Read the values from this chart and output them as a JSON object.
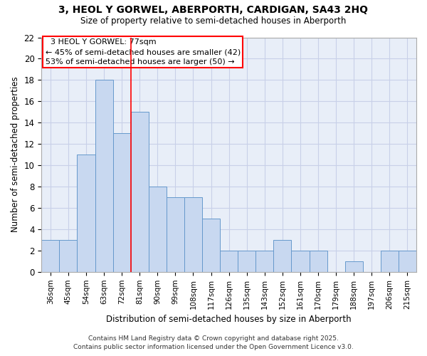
{
  "title": "3, HEOL Y GORWEL, ABERPORTH, CARDIGAN, SA43 2HQ",
  "subtitle": "Size of property relative to semi-detached houses in Aberporth",
  "xlabel": "Distribution of semi-detached houses by size in Aberporth",
  "ylabel": "Number of semi-detached properties",
  "categories": [
    "36sqm",
    "45sqm",
    "54sqm",
    "63sqm",
    "72sqm",
    "81sqm",
    "90sqm",
    "99sqm",
    "108sqm",
    "117sqm",
    "126sqm",
    "135sqm",
    "143sqm",
    "152sqm",
    "161sqm",
    "170sqm",
    "179sqm",
    "188sqm",
    "197sqm",
    "206sqm",
    "215sqm"
  ],
  "values": [
    3,
    3,
    11,
    18,
    13,
    15,
    8,
    7,
    7,
    5,
    2,
    2,
    2,
    3,
    2,
    2,
    0,
    1,
    0,
    2,
    2
  ],
  "bar_color": "#c8d8f0",
  "bar_edgecolor": "#6699cc",
  "redline_index": 5,
  "annotation_title": "3 HEOL Y GORWEL: 77sqm",
  "annotation_line1": "← 45% of semi-detached houses are smaller (42)",
  "annotation_line2": "53% of semi-detached houses are larger (50) →",
  "ylim": [
    0,
    22
  ],
  "yticks": [
    0,
    2,
    4,
    6,
    8,
    10,
    12,
    14,
    16,
    18,
    20,
    22
  ],
  "footer1": "Contains HM Land Registry data © Crown copyright and database right 2025.",
  "footer2": "Contains public sector information licensed under the Open Government Licence v3.0.",
  "bg_color": "#ffffff",
  "plot_bg_color": "#e8eef8",
  "grid_color": "#c8d0e8"
}
